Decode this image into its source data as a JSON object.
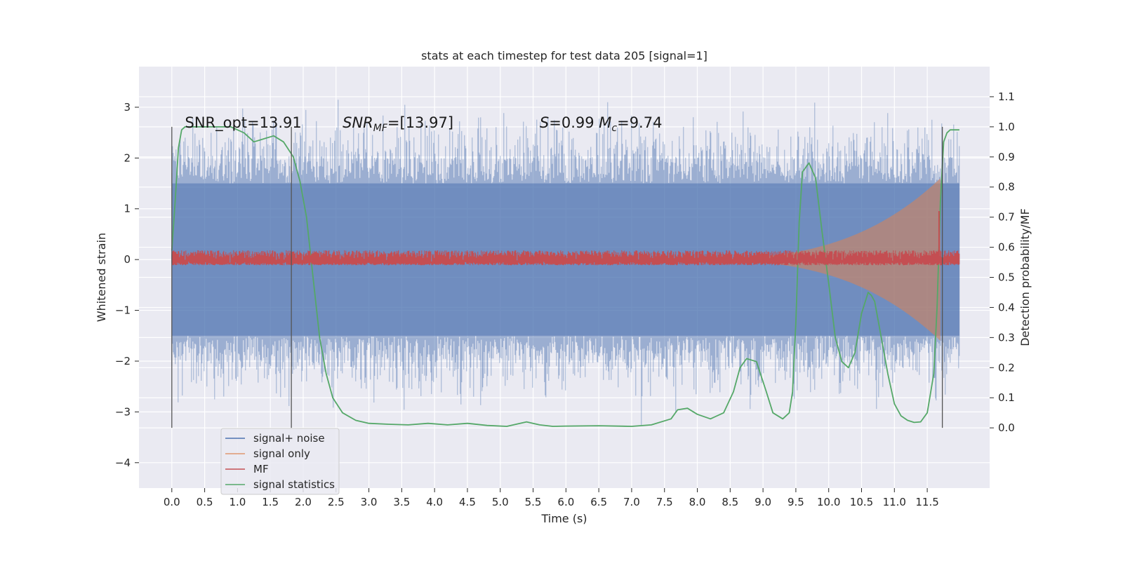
{
  "chart_data": {
    "type": "line",
    "title": "stats at each timestep for test data 205 [signal=1]",
    "xlabel": "Time (s)",
    "ylabel": "Whitened strain",
    "y2label": "Detection probability/MF",
    "xlim": [
      -0.5,
      12.45
    ],
    "ylim": [
      -4.5,
      3.8
    ],
    "y2lim": [
      -0.2,
      1.2
    ],
    "x_ticks": [
      0.0,
      0.5,
      1.0,
      1.5,
      2.0,
      2.5,
      3.0,
      3.5,
      4.0,
      4.5,
      5.0,
      5.5,
      6.0,
      6.5,
      7.0,
      7.5,
      8.0,
      8.5,
      9.0,
      9.5,
      10.0,
      10.5,
      11.0,
      11.5
    ],
    "x_tick_labels": [
      "0.0",
      "0.5",
      "1.0",
      "1.5",
      "2.0",
      "2.5",
      "3.0",
      "3.5",
      "4.0",
      "4.5",
      "5.0",
      "5.5",
      "6.0",
      "6.5",
      "7.0",
      "7.5",
      "8.0",
      "8.5",
      "9.0",
      "9.5",
      "10.0",
      "10.5",
      "11.0",
      "11.5"
    ],
    "y_ticks": [
      -4,
      -3,
      -2,
      -1,
      0,
      1,
      2,
      3
    ],
    "y_tick_labels": [
      "−4",
      "−3",
      "−2",
      "−1",
      "0",
      "1",
      "2",
      "3"
    ],
    "y2_ticks": [
      0.0,
      0.1,
      0.2,
      0.3,
      0.4,
      0.5,
      0.6,
      0.7,
      0.8,
      0.9,
      1.0,
      1.1
    ],
    "y2_tick_labels": [
      "0.0",
      "0.1",
      "0.2",
      "0.3",
      "0.4",
      "0.5",
      "0.6",
      "0.7",
      "0.8",
      "0.9",
      "1.0",
      "1.1"
    ],
    "grid": true,
    "legend_position": "lower-left",
    "annotations": [
      {
        "key": "snr_opt",
        "text": "SNR_opt=13.91",
        "x": 0.2,
        "y": 2.6
      },
      {
        "key": "snr_mf",
        "parts": [
          {
            "t": "SNR",
            "i": true
          },
          {
            "t": "MF",
            "i": true,
            "sub": true
          },
          {
            "t": "=[13.97]",
            "i": false
          }
        ],
        "x": 2.6,
        "y": 2.6
      },
      {
        "key": "s_mc",
        "parts": [
          {
            "t": "S",
            "i": true
          },
          {
            "t": "=0.99   ",
            "i": false
          },
          {
            "t": "M",
            "i": true
          },
          {
            "t": "c",
            "i": true,
            "sub": true
          },
          {
            "t": "=9.74",
            "i": false
          }
        ],
        "x": 5.6,
        "y": 2.6
      }
    ],
    "vertical_lines": [
      {
        "x": 0.0,
        "y2_range": [
          0.0,
          1.0
        ]
      },
      {
        "x": 1.82,
        "y2_range": [
          0.0,
          1.0
        ]
      },
      {
        "x": 11.73,
        "y2_range": [
          0.0,
          1.0
        ]
      }
    ],
    "series": [
      {
        "name": "signal+ noise",
        "axis": "left",
        "color": "#4c72b0",
        "x_range": [
          0.0,
          11.99
        ],
        "envelope_core": 1.5,
        "spike_max": 3.45,
        "spike_min": -4.08
      },
      {
        "name": "signal only",
        "axis": "left",
        "color": "#dd8452",
        "x_range": [
          7.5,
          11.7
        ],
        "peak_amplitude": 1.6
      },
      {
        "name": "MF",
        "axis": "right",
        "color": "#c44e52",
        "x_range": [
          0.0,
          11.99
        ],
        "baseline": 0.55,
        "band": [
          0.54,
          0.59
        ],
        "spike": {
          "x": 11.68,
          "y": 0.72
        }
      },
      {
        "name": "signal statistics",
        "axis": "right",
        "color": "#55a868",
        "x": [
          0.0,
          0.05,
          0.1,
          0.15,
          0.2,
          0.3,
          0.5,
          0.7,
          0.9,
          1.1,
          1.25,
          1.4,
          1.55,
          1.7,
          1.85,
          1.95,
          2.05,
          2.15,
          2.25,
          2.35,
          2.45,
          2.6,
          2.8,
          3.0,
          3.3,
          3.6,
          3.9,
          4.2,
          4.5,
          4.8,
          5.1,
          5.4,
          5.6,
          5.8,
          6.0,
          6.5,
          7.0,
          7.3,
          7.6,
          7.7,
          7.85,
          8.0,
          8.2,
          8.4,
          8.55,
          8.65,
          8.75,
          8.9,
          9.05,
          9.15,
          9.3,
          9.4,
          9.45,
          9.5,
          9.55,
          9.6,
          9.7,
          9.8,
          9.9,
          10.0,
          10.1,
          10.2,
          10.3,
          10.4,
          10.5,
          10.6,
          10.65,
          10.7,
          10.8,
          10.9,
          11.0,
          11.1,
          11.2,
          11.3,
          11.4,
          11.5,
          11.6,
          11.65,
          11.7,
          11.75,
          11.8,
          11.85,
          11.9,
          11.99
        ],
        "values": [
          0.59,
          0.75,
          0.93,
          0.99,
          1.0,
          1.0,
          1.0,
          1.0,
          1.0,
          0.98,
          0.95,
          0.96,
          0.97,
          0.95,
          0.9,
          0.82,
          0.7,
          0.5,
          0.3,
          0.18,
          0.1,
          0.05,
          0.025,
          0.015,
          0.012,
          0.01,
          0.015,
          0.01,
          0.015,
          0.008,
          0.005,
          0.02,
          0.01,
          0.005,
          0.006,
          0.007,
          0.005,
          0.01,
          0.03,
          0.06,
          0.065,
          0.045,
          0.03,
          0.05,
          0.12,
          0.2,
          0.23,
          0.22,
          0.12,
          0.05,
          0.03,
          0.05,
          0.12,
          0.35,
          0.68,
          0.85,
          0.88,
          0.83,
          0.65,
          0.48,
          0.3,
          0.22,
          0.2,
          0.25,
          0.38,
          0.45,
          0.44,
          0.42,
          0.3,
          0.18,
          0.08,
          0.04,
          0.025,
          0.018,
          0.02,
          0.05,
          0.18,
          0.4,
          0.75,
          0.95,
          0.98,
          0.99,
          0.99,
          0.99
        ]
      }
    ]
  }
}
